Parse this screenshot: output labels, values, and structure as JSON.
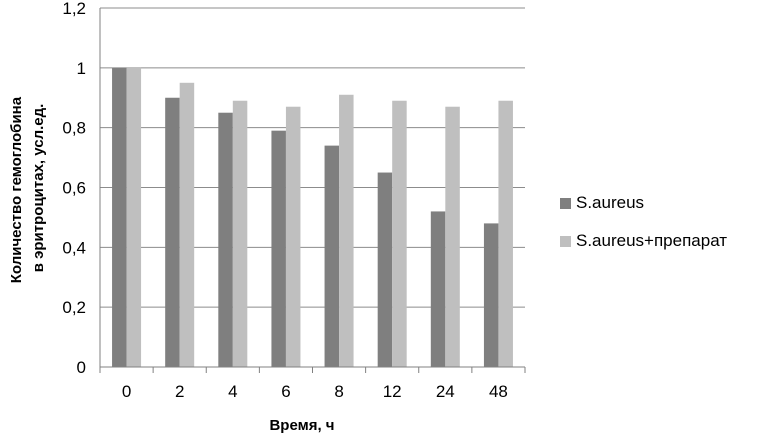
{
  "chart_data": {
    "type": "bar",
    "categories": [
      "0",
      "2",
      "4",
      "6",
      "8",
      "12",
      "24",
      "48"
    ],
    "series": [
      {
        "name": "S.aureus",
        "color": "#7f7f7f",
        "values": [
          1.0,
          0.9,
          0.85,
          0.79,
          0.74,
          0.65,
          0.52,
          0.48
        ]
      },
      {
        "name": "S.aureus+препарат",
        "color": "#bfbfbf",
        "values": [
          1.0,
          0.95,
          0.89,
          0.87,
          0.91,
          0.89,
          0.87,
          0.89
        ]
      }
    ],
    "xlabel": "Время, ч",
    "ylabel_lines": [
      "Количество гемоглобина",
      "в эритроцитах, усл.ед."
    ],
    "ylim": [
      0,
      1.2
    ],
    "yticks": [
      "0",
      "0,2",
      "0,4",
      "0,6",
      "0,8",
      "1",
      "1,2"
    ],
    "ytick_values": [
      0,
      0.2,
      0.4,
      0.6,
      0.8,
      1.0,
      1.2
    ],
    "grid": true,
    "legend_position": "right"
  }
}
